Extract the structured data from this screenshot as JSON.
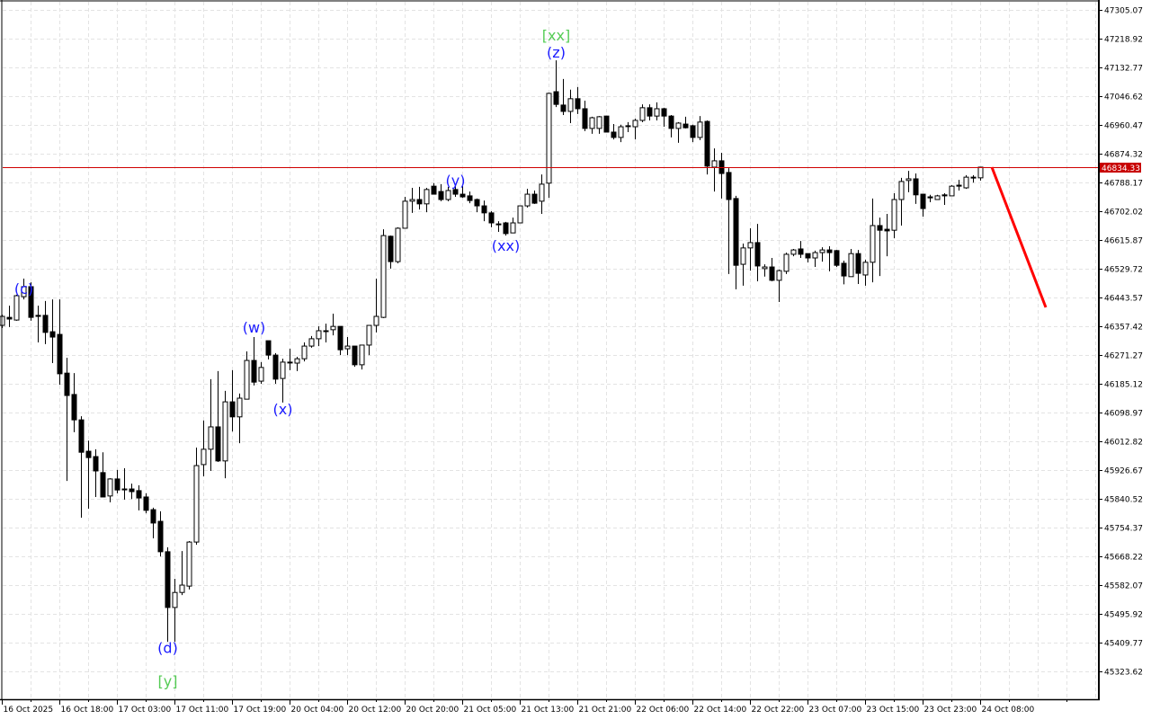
{
  "chart_data": {
    "type": "candlestick",
    "title": "",
    "xlabel": "",
    "ylabel": "",
    "ylim": [
      45237.47,
      47305.07
    ],
    "grid": true,
    "y_ticks": [
      "47305.07",
      "47218.92",
      "47132.77",
      "47046.62",
      "46960.47",
      "46874.32",
      "46788.17",
      "46702.02",
      "46615.87",
      "46529.72",
      "46443.57",
      "46357.42",
      "46271.27",
      "46185.12",
      "46098.97",
      "46012.82",
      "45926.67",
      "45840.52",
      "45754.37",
      "45668.22",
      "45582.07",
      "45495.92",
      "45409.77",
      "45323.62"
    ],
    "x_ticks": [
      {
        "bar": 0,
        "label": "16 Oct 2025"
      },
      {
        "bar": 8,
        "label": "16 Oct 18:00"
      },
      {
        "bar": 16,
        "label": "17 Oct 03:00"
      },
      {
        "bar": 24,
        "label": "17 Oct 11:00"
      },
      {
        "bar": 32,
        "label": "17 Oct 19:00"
      },
      {
        "bar": 40,
        "label": "20 Oct 04:00"
      },
      {
        "bar": 48,
        "label": "20 Oct 12:00"
      },
      {
        "bar": 56,
        "label": "20 Oct 20:00"
      },
      {
        "bar": 64,
        "label": "21 Oct 05:00"
      },
      {
        "bar": 72,
        "label": "21 Oct 13:00"
      },
      {
        "bar": 80,
        "label": "21 Oct 21:00"
      },
      {
        "bar": 88,
        "label": "22 Oct 06:00"
      },
      {
        "bar": 96,
        "label": "22 Oct 14:00"
      },
      {
        "bar": 104,
        "label": "22 Oct 22:00"
      },
      {
        "bar": 112,
        "label": "23 Oct 07:00"
      },
      {
        "bar": 120,
        "label": "23 Oct 15:00"
      },
      {
        "bar": 128,
        "label": "23 Oct 23:00"
      },
      {
        "bar": 136,
        "label": "24 Oct 08:00"
      }
    ],
    "current_price": "46834.33",
    "current_price_value": 46834.33,
    "colors": {
      "bull_fill": "#ffffff",
      "bear_fill": "#000000",
      "outline": "#000000",
      "price_line": "#d00000",
      "forecast": "#ff0000",
      "wave_label": "#1a1aff",
      "major_label": "#55cc55",
      "grid": "#e3e3e3"
    },
    "forecast": {
      "from_bar": 137,
      "from_price": 46834,
      "to_bar": 144,
      "to_price": 46414
    },
    "wave_labels": [
      {
        "text": "(c)",
        "bar": 3,
        "price": 46470,
        "color": "wave"
      },
      {
        "text": "(d)",
        "bar": 23,
        "price": 45395,
        "color": "wave"
      },
      {
        "text": "[y]",
        "bar": 23,
        "price": 45295,
        "color": "major"
      },
      {
        "text": "(w)",
        "bar": 35,
        "price": 46355,
        "color": "wave"
      },
      {
        "text": "(x)",
        "bar": 39,
        "price": 46110,
        "color": "wave"
      },
      {
        "text": "(y)",
        "bar": 63,
        "price": 46795,
        "color": "wave"
      },
      {
        "text": "(xx)",
        "bar": 70,
        "price": 46600,
        "color": "wave"
      },
      {
        "text": "[xx]",
        "bar": 77,
        "price": 47230,
        "color": "major"
      },
      {
        "text": "(z)",
        "bar": 77,
        "price": 47178,
        "color": "wave"
      }
    ],
    "ohlc_fields": [
      "open",
      "high",
      "low",
      "close"
    ],
    "candles": [
      [
        46360,
        46392,
        46352,
        46387
      ],
      [
        46384,
        46419,
        46355,
        46379
      ],
      [
        46376,
        46452,
        46374,
        46449
      ],
      [
        46446,
        46500,
        46438,
        46476
      ],
      [
        46476,
        46489,
        46374,
        46384
      ],
      [
        46390,
        46419,
        46309,
        46387
      ],
      [
        46390,
        46433,
        46304,
        46339
      ],
      [
        46341,
        46438,
        46247,
        46325
      ],
      [
        46333,
        46438,
        46182,
        46215
      ],
      [
        46217,
        46263,
        45894,
        46150
      ],
      [
        46153,
        46217,
        46040,
        46077
      ],
      [
        46077,
        46088,
        45784,
        45980
      ],
      [
        45983,
        46015,
        45811,
        45964
      ],
      [
        45967,
        45989,
        45846,
        45924
      ],
      [
        45919,
        45980,
        45846,
        45846
      ],
      [
        45849,
        45902,
        45830,
        45900
      ],
      [
        45900,
        45927,
        45857,
        45867
      ],
      [
        45870,
        45932,
        45838,
        45870
      ],
      [
        45870,
        45886,
        45840,
        45862
      ],
      [
        45865,
        45881,
        45806,
        45843
      ],
      [
        45846,
        45857,
        45797,
        45806
      ],
      [
        45808,
        45814,
        45722,
        45768
      ],
      [
        45773,
        45803,
        45668,
        45682
      ],
      [
        45682,
        45695,
        45412,
        45515
      ],
      [
        45515,
        45601,
        45412,
        45560
      ],
      [
        45560,
        45684,
        45552,
        45582
      ],
      [
        45579,
        45714,
        45569,
        45711
      ],
      [
        45711,
        45994,
        45703,
        45940
      ],
      [
        45943,
        46075,
        45908,
        45989
      ],
      [
        45989,
        46199,
        45924,
        46056
      ],
      [
        46056,
        46223,
        45951,
        45954
      ],
      [
        45954,
        46164,
        45902,
        46131
      ],
      [
        46131,
        46226,
        46042,
        46086
      ],
      [
        46086,
        46156,
        46007,
        46142
      ],
      [
        46139,
        46282,
        46139,
        46255
      ],
      [
        46255,
        46325,
        46180,
        46190
      ],
      [
        46193,
        46250,
        46185,
        46234
      ],
      [
        46314,
        46314,
        46258,
        46271
      ],
      [
        46271,
        46277,
        46185,
        46199
      ],
      [
        46201,
        46260,
        46129,
        46250
      ],
      [
        46250,
        46290,
        46226,
        46250
      ],
      [
        46247,
        46266,
        46223,
        46260
      ],
      [
        46260,
        46309,
        46252,
        46298
      ],
      [
        46298,
        46328,
        46293,
        46320
      ],
      [
        46320,
        46357,
        46298,
        46344
      ],
      [
        46344,
        46365,
        46309,
        46344
      ],
      [
        46347,
        46395,
        46330,
        46357
      ],
      [
        46357,
        46357,
        46271,
        46287
      ],
      [
        46290,
        46325,
        46271,
        46298
      ],
      [
        46298,
        46298,
        46236,
        46242
      ],
      [
        46242,
        46301,
        46228,
        46301
      ],
      [
        46301,
        46360,
        46271,
        46360
      ],
      [
        46360,
        46500,
        46339,
        46387
      ],
      [
        46384,
        46648,
        46382,
        46629
      ],
      [
        46627,
        46629,
        46530,
        46551
      ],
      [
        46551,
        46654,
        46546,
        46651
      ],
      [
        46651,
        46745,
        46651,
        46732
      ],
      [
        46732,
        46772,
        46697,
        46737
      ],
      [
        46737,
        46775,
        46707,
        46724
      ],
      [
        46724,
        46772,
        46699,
        46767
      ],
      [
        46777,
        46786,
        46753,
        46753
      ],
      [
        46761,
        46783,
        46732,
        46737
      ],
      [
        46737,
        46775,
        46732,
        46764
      ],
      [
        46767,
        46783,
        46745,
        46753
      ],
      [
        46753,
        46777,
        46742,
        46745
      ],
      [
        46748,
        46761,
        46726,
        46734
      ],
      [
        46737,
        46740,
        46699,
        46718
      ],
      [
        46718,
        46734,
        46672,
        46697
      ],
      [
        46697,
        46702,
        46654,
        46667
      ],
      [
        46664,
        46672,
        46640,
        46664
      ],
      [
        46667,
        46670,
        46629,
        46635
      ],
      [
        46637,
        46683,
        46637,
        46667
      ],
      [
        46667,
        46718,
        46667,
        46718
      ],
      [
        46718,
        46769,
        46713,
        46753
      ],
      [
        46753,
        46764,
        46724,
        46726
      ],
      [
        46732,
        46812,
        46694,
        46783
      ],
      [
        46786,
        47057,
        46742,
        47055
      ],
      [
        47060,
        47154,
        47014,
        47022
      ],
      [
        47020,
        47098,
        46990,
        47001
      ],
      [
        47001,
        47066,
        46966,
        47039
      ],
      [
        47039,
        47074,
        46993,
        47009
      ],
      [
        47009,
        47033,
        46942,
        46950
      ],
      [
        46950,
        46985,
        46934,
        46982
      ],
      [
        46950,
        46987,
        46934,
        46985
      ],
      [
        46987,
        46987,
        46939,
        46939
      ],
      [
        46939,
        46963,
        46917,
        46923
      ],
      [
        46923,
        46961,
        46909,
        46955
      ],
      [
        46958,
        46969,
        46939,
        46958
      ],
      [
        46955,
        46979,
        46917,
        46974
      ],
      [
        46974,
        47022,
        46969,
        47012
      ],
      [
        47012,
        47022,
        46974,
        46987
      ],
      [
        46987,
        47028,
        46974,
        47009
      ],
      [
        47009,
        47012,
        46955,
        46987
      ],
      [
        46987,
        46990,
        46923,
        46950
      ],
      [
        46950,
        46969,
        46907,
        46966
      ],
      [
        46963,
        46985,
        46950,
        46952
      ],
      [
        46958,
        46961,
        46909,
        46923
      ],
      [
        46923,
        46987,
        46915,
        46969
      ],
      [
        46971,
        46974,
        46812,
        46837
      ],
      [
        46834,
        46890,
        46761,
        46853
      ],
      [
        46853,
        46877,
        46740,
        46815
      ],
      [
        46818,
        46831,
        46514,
        46737
      ],
      [
        46740,
        46748,
        46468,
        46540
      ],
      [
        46543,
        46605,
        46479,
        46592
      ],
      [
        46592,
        46651,
        46524,
        46608
      ],
      [
        46608,
        46664,
        46492,
        46538
      ],
      [
        46530,
        46543,
        46506,
        46535
      ],
      [
        46535,
        46562,
        46492,
        46495
      ],
      [
        46495,
        46527,
        46430,
        46524
      ],
      [
        46522,
        46578,
        46514,
        46573
      ],
      [
        46573,
        46589,
        46567,
        46586
      ],
      [
        46589,
        46613,
        46562,
        46573
      ],
      [
        46575,
        46575,
        46549,
        46562
      ],
      [
        46562,
        46584,
        46535,
        46578
      ],
      [
        46578,
        46594,
        46551,
        46586
      ],
      [
        46586,
        46597,
        46522,
        46578
      ],
      [
        46584,
        46586,
        46535,
        46540
      ],
      [
        46546,
        46554,
        46483,
        46508
      ],
      [
        46506,
        46589,
        46506,
        46575
      ],
      [
        46575,
        46586,
        46484,
        46516
      ],
      [
        46511,
        46557,
        46479,
        46549
      ],
      [
        46549,
        46740,
        46489,
        46659
      ],
      [
        46659,
        46683,
        46508,
        46645
      ],
      [
        46648,
        46694,
        46567,
        46643
      ],
      [
        46645,
        46756,
        46621,
        46737
      ],
      [
        46737,
        46802,
        46659,
        46791
      ],
      [
        46794,
        46823,
        46759,
        46799
      ],
      [
        46799,
        46815,
        46724,
        46751
      ],
      [
        46753,
        46753,
        46686,
        46710
      ],
      [
        46745,
        46751,
        46729,
        46742
      ],
      [
        46737,
        46751,
        46737,
        46748
      ],
      [
        46751,
        46756,
        46721,
        46748
      ],
      [
        46748,
        46780,
        46748,
        46777
      ],
      [
        46780,
        46796,
        46764,
        46777
      ],
      [
        46772,
        46810,
        46769,
        46804
      ],
      [
        46804,
        46810,
        46788,
        46804
      ],
      [
        46802,
        46834,
        46794,
        46834
      ]
    ]
  }
}
